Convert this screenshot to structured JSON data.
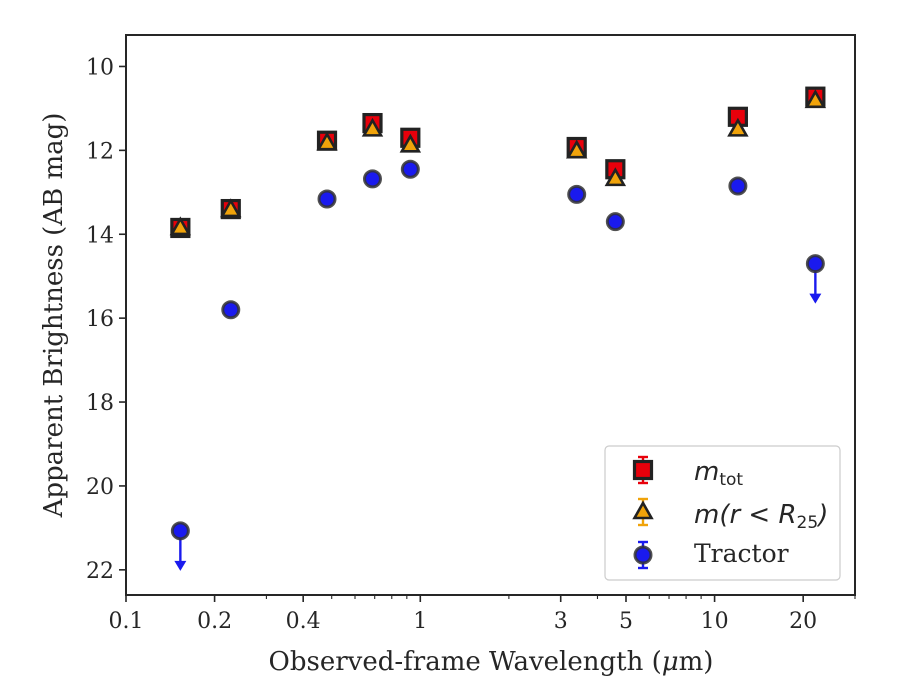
{
  "chart_data": {
    "type": "scatter",
    "xlabel_main": "Observed-frame Wavelength (",
    "xlabel_mu": "μ",
    "xlabel_end": "m)",
    "ylabel": "Apparent Brightness (AB mag)",
    "title": "",
    "xscale": "log",
    "xlim": [
      0.1,
      30
    ],
    "ylim": [
      22.6,
      9.25
    ],
    "y_inverted": true,
    "grid": false,
    "legend_position": "bottom-right",
    "xticks": [
      {
        "value": 0.1,
        "label": "0.1"
      },
      {
        "value": 0.2,
        "label": "0.2"
      },
      {
        "value": 0.4,
        "label": "0.4"
      },
      {
        "value": 1,
        "label": "1"
      },
      {
        "value": 3,
        "label": "3"
      },
      {
        "value": 5,
        "label": "5"
      },
      {
        "value": 10,
        "label": "10"
      },
      {
        "value": 20,
        "label": "20"
      }
    ],
    "yticks": [
      {
        "value": 10,
        "label": "10"
      },
      {
        "value": 12,
        "label": "12"
      },
      {
        "value": 14,
        "label": "14"
      },
      {
        "value": 16,
        "label": "16"
      },
      {
        "value": 18,
        "label": "18"
      },
      {
        "value": 20,
        "label": "20"
      },
      {
        "value": 22,
        "label": "22"
      }
    ],
    "series": [
      {
        "name": "m_tot",
        "legend_main": "m",
        "legend_sub": "tot",
        "marker": "square",
        "color": "#e8000b",
        "edge": "#222222",
        "errcolor": "#e8000b",
        "points": [
          {
            "x": 0.153,
            "y": 13.85
          },
          {
            "x": 0.227,
            "y": 13.4
          },
          {
            "x": 0.482,
            "y": 11.77
          },
          {
            "x": 0.688,
            "y": 11.35
          },
          {
            "x": 0.925,
            "y": 11.7
          },
          {
            "x": 3.4,
            "y": 11.92
          },
          {
            "x": 4.6,
            "y": 12.45
          },
          {
            "x": 12.0,
            "y": 11.2
          },
          {
            "x": 22.0,
            "y": 10.72
          }
        ]
      },
      {
        "name": "m(r < R25)",
        "legend_main": "m(r < R",
        "legend_sub": "25",
        "legend_end": ")",
        "marker": "triangle",
        "color": "#f0a30a",
        "edge": "#222222",
        "errcolor": "#f0a30a",
        "points": [
          {
            "x": 0.153,
            "y": 13.85
          },
          {
            "x": 0.227,
            "y": 13.42
          },
          {
            "x": 0.482,
            "y": 11.83
          },
          {
            "x": 0.688,
            "y": 11.5
          },
          {
            "x": 0.925,
            "y": 11.88
          },
          {
            "x": 3.4,
            "y": 12.02
          },
          {
            "x": 4.6,
            "y": 12.68
          },
          {
            "x": 12.0,
            "y": 11.5
          },
          {
            "x": 22.0,
            "y": 10.82
          }
        ]
      },
      {
        "name": "Tractor",
        "legend_main": "Tractor",
        "marker": "circle",
        "color": "#1a1aee",
        "edge": "#333333",
        "errcolor": "#1a1aee",
        "points": [
          {
            "x": 0.153,
            "y": 21.07,
            "upper_limit": true
          },
          {
            "x": 0.227,
            "y": 15.8
          },
          {
            "x": 0.482,
            "y": 13.16
          },
          {
            "x": 0.688,
            "y": 12.68
          },
          {
            "x": 0.925,
            "y": 12.45
          },
          {
            "x": 3.4,
            "y": 13.05
          },
          {
            "x": 4.6,
            "y": 13.7
          },
          {
            "x": 12.0,
            "y": 12.85
          },
          {
            "x": 22.0,
            "y": 14.7,
            "upper_limit": true
          }
        ]
      }
    ]
  }
}
